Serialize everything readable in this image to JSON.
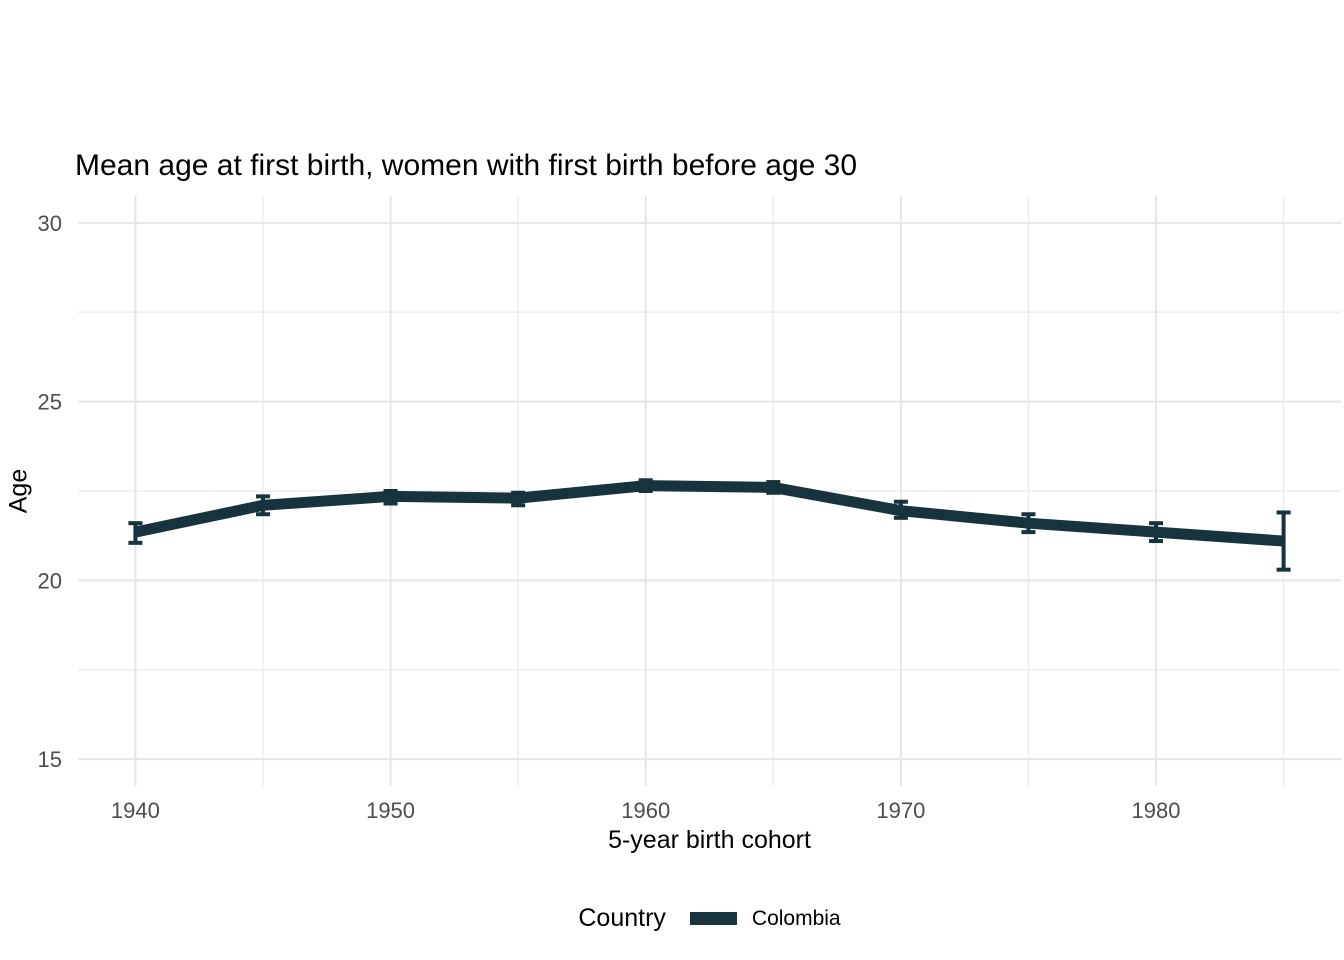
{
  "title": "Mean age at first birth, women with first birth before age 30",
  "chart_data": {
    "type": "line",
    "title": "Mean age at first birth, women with first birth before age 30",
    "xlabel": "5-year birth cohort",
    "ylabel": "Age",
    "x": [
      1940,
      1945,
      1950,
      1955,
      1960,
      1965,
      1970,
      1975,
      1980,
      1985
    ],
    "series": [
      {
        "name": "Colombia",
        "values": [
          21.35,
          22.1,
          22.35,
          22.3,
          22.65,
          22.6,
          21.95,
          21.6,
          21.35,
          21.1
        ],
        "lower": [
          21.05,
          21.85,
          22.15,
          22.1,
          22.5,
          22.45,
          21.75,
          21.35,
          21.1,
          20.3
        ],
        "upper": [
          21.6,
          22.35,
          22.5,
          22.45,
          22.8,
          22.75,
          22.2,
          21.85,
          21.6,
          21.9
        ]
      }
    ],
    "xlim": [
      1937.75,
      1987.25
    ],
    "ylim": [
      14.25,
      30.75
    ],
    "x_ticks": [
      1940,
      1950,
      1960,
      1970,
      1980
    ],
    "x_minor": [
      1945,
      1955,
      1965,
      1975,
      1985
    ],
    "y_ticks": [
      15,
      20,
      25,
      30
    ],
    "y_minor": [
      17.5,
      22.5,
      27.5
    ],
    "grid": true,
    "legend_position": "bottom",
    "legend_title": "Country",
    "line_color": "#16333E",
    "grid_major_color": "#E5E5E5",
    "grid_minor_color": "#EDEDED",
    "tick_label_color": "#4D4D4D",
    "background_color": "#FFFFFF"
  }
}
